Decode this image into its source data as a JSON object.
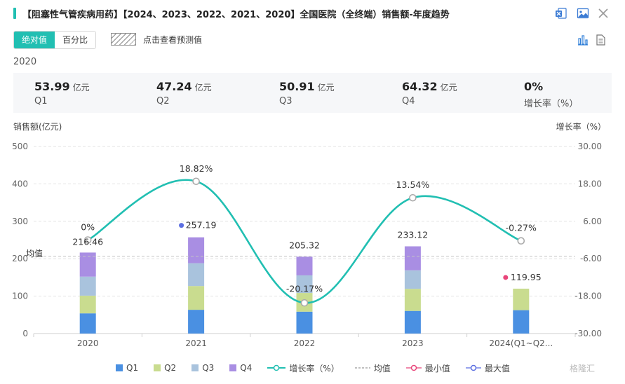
{
  "title": "【阻塞性气管疾病用药】【2024、2023、2022、2021、2020】全国医院（全终端）销售额-年度趋势",
  "toolbar": {
    "icons": [
      "excel-export-icon",
      "image-export-icon",
      "close-icon",
      "bar-chart-icon",
      "document-icon"
    ]
  },
  "modes": {
    "absolute": "绝对值",
    "percent": "百分比",
    "active": "absolute"
  },
  "forecast": {
    "label": "点击查看预测值"
  },
  "summary": {
    "year": "2020",
    "items": [
      {
        "value": "53.99",
        "unit": "亿元",
        "label": "Q1"
      },
      {
        "value": "47.24",
        "unit": "亿元",
        "label": "Q2"
      },
      {
        "value": "50.91",
        "unit": "亿元",
        "label": "Q3"
      },
      {
        "value": "64.32",
        "unit": "亿元",
        "label": "Q4"
      },
      {
        "value": "0%",
        "unit": "",
        "label": "增长率（%）"
      }
    ]
  },
  "chart_data": {
    "type": "bar",
    "stacked": true,
    "categories": [
      "2020",
      "2021",
      "2022",
      "2023",
      "2024(Q1~Q2..."
    ],
    "ylabel_left": "销售额(亿元)",
    "ylabel_right": "增长率（%）",
    "ylim_left": [
      0,
      500
    ],
    "ylim_right": [
      -30,
      30
    ],
    "yticks_left": [
      "0",
      "100",
      "200",
      "300",
      "400",
      "500"
    ],
    "yticks_right": [
      "-30.00",
      "-18.00",
      "-6.00",
      "6.00",
      "18.00",
      "30.00"
    ],
    "series": [
      {
        "name": "Q1",
        "color": "#4a90e2",
        "values": [
          53.99,
          63.5,
          58.5,
          60.5,
          62.5
        ]
      },
      {
        "name": "Q2",
        "color": "#c9dc8f",
        "values": [
          47.24,
          63.5,
          50.0,
          59.0,
          57.45
        ]
      },
      {
        "name": "Q3",
        "color": "#a9c3dd",
        "values": [
          50.91,
          61.0,
          47.0,
          49.5,
          0
        ]
      },
      {
        "name": "Q4",
        "color": "#a98ee3",
        "values": [
          64.32,
          69.19,
          49.82,
          64.12,
          0
        ]
      }
    ],
    "totals": [
      216.46,
      257.19,
      205.32,
      233.12,
      119.95
    ],
    "total_labels": [
      "216.46",
      "257.19",
      "205.32",
      "233.12",
      "119.95"
    ],
    "growth": {
      "name": "增长率（%）",
      "color": "#21bfb2",
      "values": [
        0,
        18.82,
        -20.17,
        13.54,
        -0.27
      ],
      "labels": [
        "0%",
        "18.82%",
        "-20.17%",
        "13.54%",
        "-0.27%"
      ]
    },
    "mean": {
      "label": "均值",
      "value": 206.41
    },
    "min_marker": {
      "index": 4,
      "color": "#e8457a"
    },
    "max_marker": {
      "index": 1,
      "color": "#5b6ee1"
    },
    "legend": [
      "Q1",
      "Q2",
      "Q3",
      "Q4",
      "增长率（%）",
      "均值",
      "最小值",
      "最大值"
    ],
    "grid": true,
    "legend_position": "bottom"
  },
  "watermark": "格隆汇"
}
